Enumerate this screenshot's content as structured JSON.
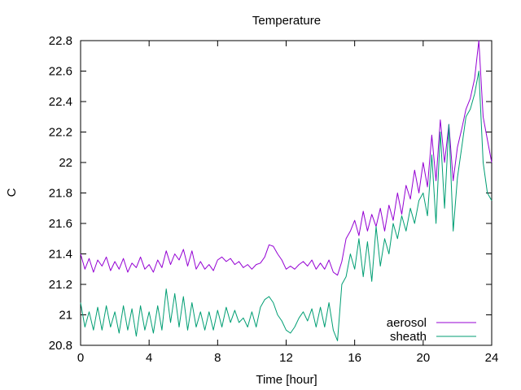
{
  "chart_data": {
    "type": "line",
    "title": "Temperature",
    "xlabel": "Time [hour]",
    "ylabel": "C",
    "xlim": [
      0,
      24
    ],
    "ylim": [
      20.8,
      22.8
    ],
    "x_ticks": [
      0,
      4,
      8,
      12,
      16,
      20,
      24
    ],
    "y_ticks": [
      20.8,
      21,
      21.2,
      21.4,
      21.6,
      21.8,
      22,
      22.2,
      22.4,
      22.6,
      22.8
    ],
    "x_tick_labels": [
      "0",
      "4",
      "8",
      "12",
      "16",
      "20",
      "24"
    ],
    "y_tick_labels": [
      "20.8",
      "21",
      "21.2",
      "21.4",
      "21.6",
      "21.8",
      "22",
      "22.2",
      "22.4",
      "22.6",
      "22.8"
    ],
    "grid": false,
    "legend_position": "bottom-right",
    "series": [
      {
        "name": "aerosol",
        "color": "#9400d3",
        "x": [
          0,
          0.25,
          0.5,
          0.75,
          1,
          1.25,
          1.5,
          1.75,
          2,
          2.25,
          2.5,
          2.75,
          3,
          3.25,
          3.5,
          3.75,
          4,
          4.25,
          4.5,
          4.75,
          5,
          5.25,
          5.5,
          5.75,
          6,
          6.25,
          6.5,
          6.75,
          7,
          7.25,
          7.5,
          7.75,
          8,
          8.25,
          8.5,
          8.75,
          9,
          9.25,
          9.5,
          9.75,
          10,
          10.25,
          10.5,
          10.75,
          11,
          11.25,
          11.5,
          11.75,
          12,
          12.25,
          12.5,
          12.75,
          13,
          13.25,
          13.5,
          13.75,
          14,
          14.25,
          14.5,
          14.75,
          15,
          15.25,
          15.5,
          15.75,
          16,
          16.25,
          16.5,
          16.75,
          17,
          17.25,
          17.5,
          17.75,
          18,
          18.25,
          18.5,
          18.75,
          19,
          19.25,
          19.5,
          19.75,
          20,
          20.25,
          20.5,
          20.75,
          21,
          21.25,
          21.5,
          21.75,
          22,
          22.25,
          22.5,
          22.75,
          23,
          23.25,
          23.5,
          23.75,
          24
        ],
        "y": [
          21.4,
          21.3,
          21.37,
          21.28,
          21.36,
          21.32,
          21.38,
          21.29,
          21.35,
          21.3,
          21.37,
          21.28,
          21.34,
          21.31,
          21.38,
          21.3,
          21.33,
          21.28,
          21.36,
          21.31,
          21.42,
          21.33,
          21.4,
          21.36,
          21.43,
          21.32,
          21.42,
          21.3,
          21.35,
          21.3,
          21.33,
          21.29,
          21.36,
          21.38,
          21.35,
          21.37,
          21.33,
          21.35,
          21.31,
          21.33,
          21.3,
          21.33,
          21.34,
          21.38,
          21.46,
          21.45,
          21.4,
          21.36,
          21.3,
          21.32,
          21.3,
          21.33,
          21.35,
          21.32,
          21.36,
          21.3,
          21.34,
          21.3,
          21.36,
          21.28,
          21.26,
          21.35,
          21.5,
          21.55,
          21.62,
          21.52,
          21.68,
          21.55,
          21.66,
          21.58,
          21.7,
          21.55,
          21.72,
          21.62,
          21.8,
          21.66,
          21.85,
          21.76,
          21.95,
          21.8,
          22.0,
          21.84,
          22.18,
          21.88,
          22.28,
          22.0,
          22.25,
          21.88,
          22.1,
          22.22,
          22.35,
          22.42,
          22.55,
          22.8,
          22.3,
          22.15,
          22.0
        ]
      },
      {
        "name": "sheath",
        "color": "#009e73",
        "x": [
          0,
          0.25,
          0.5,
          0.75,
          1,
          1.25,
          1.5,
          1.75,
          2,
          2.25,
          2.5,
          2.75,
          3,
          3.25,
          3.5,
          3.75,
          4,
          4.25,
          4.5,
          4.75,
          5,
          5.25,
          5.5,
          5.75,
          6,
          6.25,
          6.5,
          6.75,
          7,
          7.25,
          7.5,
          7.75,
          8,
          8.25,
          8.5,
          8.75,
          9,
          9.25,
          9.5,
          9.75,
          10,
          10.25,
          10.5,
          10.75,
          11,
          11.25,
          11.5,
          11.75,
          12,
          12.25,
          12.5,
          12.75,
          13,
          13.25,
          13.5,
          13.75,
          14,
          14.25,
          14.5,
          14.75,
          15,
          15.25,
          15.5,
          15.75,
          16,
          16.25,
          16.5,
          16.75,
          17,
          17.25,
          17.5,
          17.75,
          18,
          18.25,
          18.5,
          18.75,
          19,
          19.25,
          19.5,
          19.75,
          20,
          20.25,
          20.5,
          20.75,
          21,
          21.25,
          21.5,
          21.75,
          22,
          22.25,
          22.5,
          22.75,
          23,
          23.25,
          23.5,
          23.75,
          24
        ],
        "y": [
          21.08,
          20.92,
          21.02,
          20.9,
          21.05,
          20.9,
          21.06,
          20.92,
          21.02,
          20.88,
          21.06,
          20.9,
          21.04,
          20.86,
          21.06,
          20.9,
          21.02,
          20.88,
          21.06,
          20.9,
          21.17,
          20.95,
          21.14,
          20.92,
          21.12,
          20.9,
          21.08,
          20.92,
          21.02,
          20.9,
          21.02,
          20.9,
          21.03,
          20.92,
          21.05,
          20.95,
          21.03,
          20.95,
          20.98,
          20.92,
          21.02,
          20.92,
          21.05,
          21.1,
          21.12,
          21.08,
          21.0,
          20.96,
          20.9,
          20.88,
          20.92,
          20.98,
          21.02,
          20.96,
          21.04,
          20.92,
          21.05,
          20.92,
          21.08,
          20.9,
          20.83,
          21.2,
          21.25,
          21.4,
          21.3,
          21.5,
          21.25,
          21.48,
          21.22,
          21.58,
          21.32,
          21.5,
          21.4,
          21.6,
          21.5,
          21.65,
          21.55,
          21.7,
          21.6,
          21.75,
          21.8,
          21.65,
          22.05,
          21.6,
          22.2,
          21.7,
          22.25,
          21.55,
          21.9,
          22.1,
          22.3,
          22.35,
          22.45,
          22.6,
          22.0,
          21.8,
          21.75
        ]
      }
    ]
  }
}
